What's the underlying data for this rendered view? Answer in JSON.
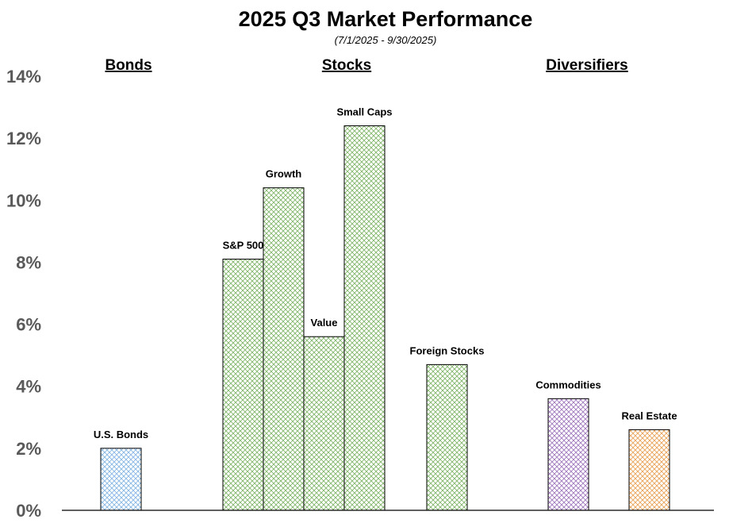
{
  "chart_data": {
    "type": "bar",
    "title": "2025 Q3 Market Performance",
    "subtitle": "(7/1/2025 - 9/30/2025)",
    "xlabel": "",
    "ylabel": "",
    "ylim": [
      0,
      14
    ],
    "yticks": [
      "0%",
      "2%",
      "4%",
      "6%",
      "8%",
      "10%",
      "12%",
      "14%"
    ],
    "groups": [
      {
        "label": "Bonds",
        "categories": [
          "U.S. Bonds"
        ]
      },
      {
        "label": "Stocks",
        "categories": [
          "S&P 500",
          "Growth",
          "Value",
          "Small Caps",
          "Foreign Stocks"
        ]
      },
      {
        "label": "Diversifiers",
        "categories": [
          "Commodities",
          "Real Estate"
        ]
      }
    ],
    "categories": [
      "U.S. Bonds",
      "S&P 500",
      "Growth",
      "Value",
      "Small Caps",
      "Foreign Stocks",
      "Commodities",
      "Real Estate"
    ],
    "values": [
      2.0,
      8.1,
      10.4,
      5.6,
      12.4,
      4.7,
      3.6,
      2.6
    ],
    "colors": [
      "#6fa8dc",
      "#6aa84f",
      "#6aa84f",
      "#6aa84f",
      "#6aa84f",
      "#6aa84f",
      "#8e5fb0",
      "#e69138"
    ],
    "grid": false,
    "legend": "none"
  }
}
